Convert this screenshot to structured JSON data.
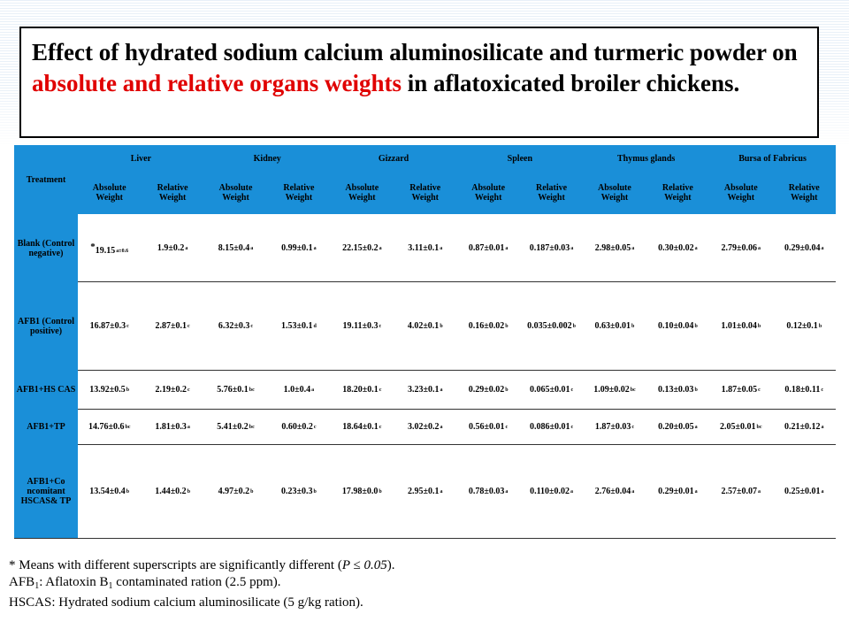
{
  "title": {
    "part1": "Effect of hydrated sodium calcium aluminosilicate and turmeric powder on ",
    "highlight": "absolute and relative organs weights",
    "part2": " in aflatoxicated broiler chickens."
  },
  "table": {
    "treatment_header": "Treatment",
    "organs": [
      "Liver",
      "Kidney",
      "Gizzard",
      "Spleen",
      "Thymus glands",
      "Bursa of Fabricus"
    ],
    "sub_absolute": "Absolute Weight",
    "sub_relative": "Relative Weight",
    "rows": [
      {
        "treatment": "Blank (Control negative)",
        "star": "*",
        "cells": [
          [
            "19.15",
            "a±0.6"
          ],
          [
            "1.9±0.2",
            "a"
          ],
          [
            "8.15±0.4",
            "a"
          ],
          [
            "0.99±0.1",
            "a"
          ],
          [
            "22.15±0.2",
            "a"
          ],
          [
            "3.11±0.1",
            "a"
          ],
          [
            "0.87±0.01",
            "a"
          ],
          [
            "0.187±0.03",
            "a"
          ],
          [
            "2.98±0.05",
            "a"
          ],
          [
            "0.30±0.02",
            "a"
          ],
          [
            "2.79±0.06",
            "a"
          ],
          [
            "0.29±0.04",
            "a"
          ]
        ]
      },
      {
        "treatment": "AFB1 (Control positive)",
        "star": "",
        "cells": [
          [
            "16.87±0.3",
            "c"
          ],
          [
            "2.87±0.1",
            "c"
          ],
          [
            "6.32±0.3",
            "c"
          ],
          [
            "1.53±0.1",
            "d"
          ],
          [
            "19.11±0.3",
            "c"
          ],
          [
            "4.02±0.1",
            "b"
          ],
          [
            "0.16±0.02",
            "b"
          ],
          [
            "0.035±0.002",
            "b"
          ],
          [
            "0.63±0.01",
            "b"
          ],
          [
            "0.10±0.04",
            "b"
          ],
          [
            "1.01±0.04",
            "b"
          ],
          [
            "0.12±0.1",
            "b"
          ]
        ]
      },
      {
        "treatment": "AFB1+HS CAS",
        "star": "",
        "cells": [
          [
            "13.92±0.5",
            "b"
          ],
          [
            "2.19±0.2",
            "c"
          ],
          [
            "5.76±0.1",
            "bc"
          ],
          [
            "1.0±0.4",
            "a"
          ],
          [
            "18.20±0.1",
            "c"
          ],
          [
            "3.23±0.1",
            "a"
          ],
          [
            "0.29±0.02",
            "b"
          ],
          [
            "0.065±0.01",
            "c"
          ],
          [
            "1.09±0.02",
            "bc"
          ],
          [
            "0.13±0.03",
            "b"
          ],
          [
            "1.87±0.05",
            "c"
          ],
          [
            "0.18±0.11",
            "c"
          ]
        ]
      },
      {
        "treatment": "AFB1+TP",
        "star": "",
        "cells": [
          [
            "14.76±0.6",
            "bc"
          ],
          [
            "1.81±0.3",
            "a"
          ],
          [
            "5.41±0.2",
            "bc"
          ],
          [
            "0.60±0.2",
            "c"
          ],
          [
            "18.64±0.1",
            "c"
          ],
          [
            "3.02±0.2",
            "a"
          ],
          [
            "0.56±0.01",
            "c"
          ],
          [
            "0.086±0.01",
            "c"
          ],
          [
            "1.87±0.03",
            "c"
          ],
          [
            "0.20±0.05",
            "a"
          ],
          [
            "2.05±0.01",
            "bc"
          ],
          [
            "0.21±0.12",
            "a"
          ]
        ]
      },
      {
        "treatment": "AFB1+Co ncomitant HSCAS& TP",
        "star": "",
        "cells": [
          [
            "13.54±0.4",
            "b"
          ],
          [
            "1.44±0.2",
            "b"
          ],
          [
            "4.97±0.2",
            "b"
          ],
          [
            "0.23±0.3",
            "b"
          ],
          [
            "17.98±0.0",
            "b"
          ],
          [
            "2.95±0.1",
            "a"
          ],
          [
            "0.78±0.03",
            "a"
          ],
          [
            "0.110±0.02",
            "a"
          ],
          [
            "2.76±0.04",
            "a"
          ],
          [
            "0.29±0.01",
            "a"
          ],
          [
            "2.57±0.07",
            "a"
          ],
          [
            "0.25±0.01",
            "a"
          ]
        ]
      }
    ]
  },
  "footnotes": {
    "line1_a": "* Means with different superscripts are significantly different (",
    "line1_b": "P ≤ 0.05",
    "line1_c": ").",
    "line2_a": "AFB",
    "line2_sub": "1",
    "line2_b": ": Aflatoxin B",
    "line2_sub2": "1",
    "line2_c": " contaminated ration (2.5 ppm).",
    "line3": "HSCAS: Hydrated sodium calcium aluminosilicate (5 g/kg ration)."
  }
}
